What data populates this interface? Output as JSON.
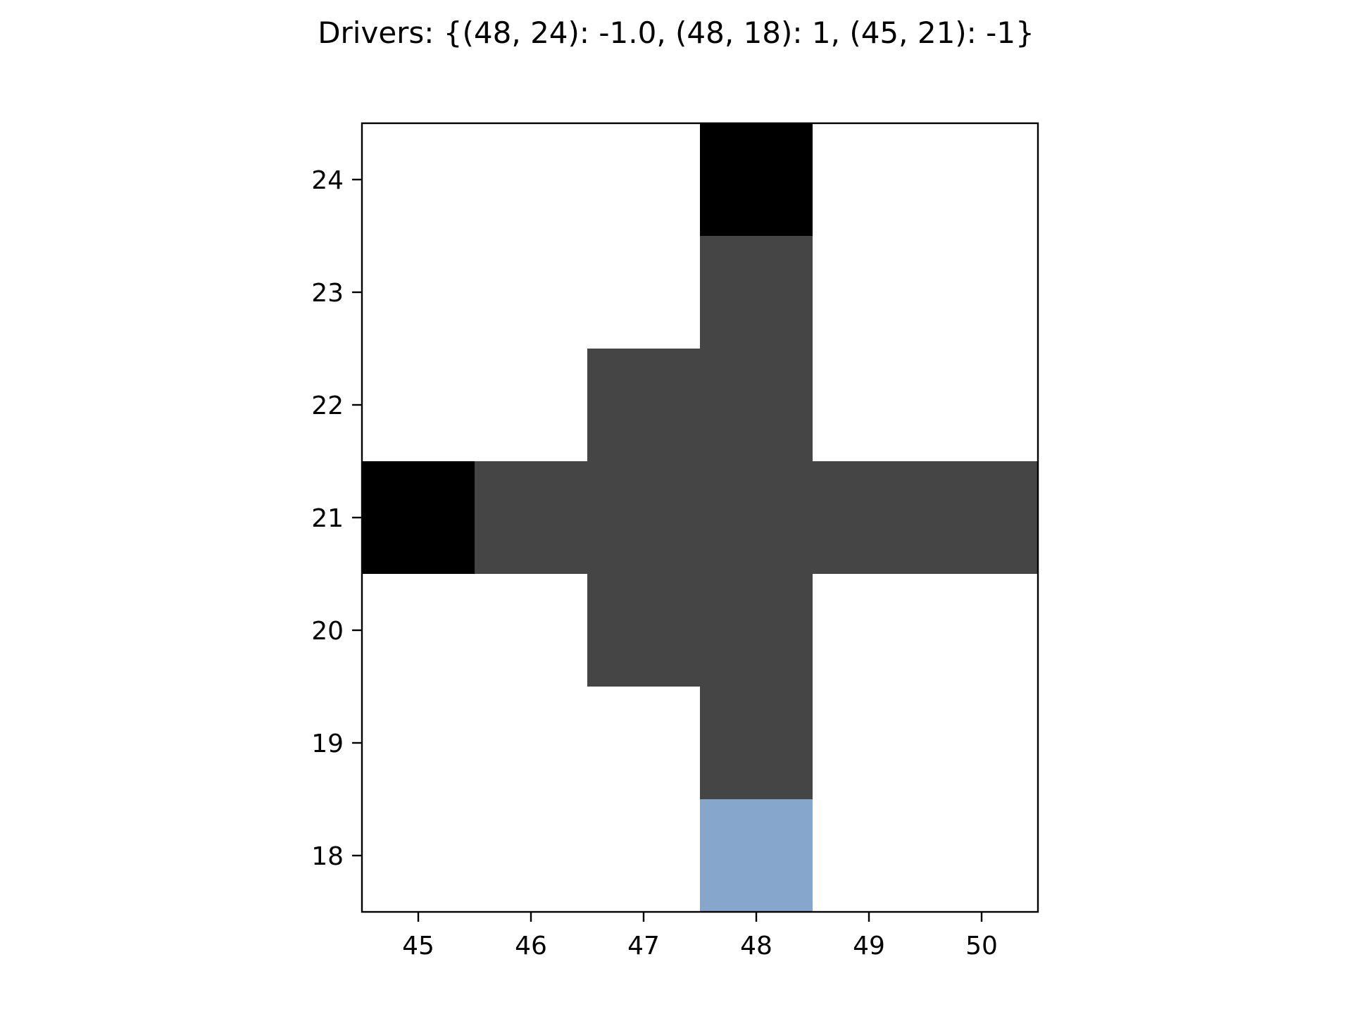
{
  "chart_data": {
    "type": "heatmap",
    "title": "Drivers: {(48, 24): -1.0, (48, 18): 1, (45, 21): -1}",
    "xlabel": "",
    "ylabel": "",
    "xlim": [
      44.5,
      50.5
    ],
    "ylim": [
      17.5,
      24.5
    ],
    "x_ticks": [
      45,
      46,
      47,
      48,
      49,
      50
    ],
    "y_ticks": [
      18,
      19,
      20,
      21,
      22,
      23,
      24
    ],
    "grid": false,
    "background_color": "#ffffff",
    "state_colors": {
      "driver_negative": "#000000",
      "active": "#454545",
      "driver_positive": "#87a6cc"
    },
    "cells": [
      {
        "x": 48,
        "y": 24,
        "state": "driver_negative",
        "value": -1.0
      },
      {
        "x": 48,
        "y": 23,
        "state": "active"
      },
      {
        "x": 47,
        "y": 22,
        "state": "active"
      },
      {
        "x": 48,
        "y": 22,
        "state": "active"
      },
      {
        "x": 45,
        "y": 21,
        "state": "driver_negative",
        "value": -1
      },
      {
        "x": 46,
        "y": 21,
        "state": "active"
      },
      {
        "x": 47,
        "y": 21,
        "state": "active"
      },
      {
        "x": 48,
        "y": 21,
        "state": "active"
      },
      {
        "x": 49,
        "y": 21,
        "state": "active"
      },
      {
        "x": 50,
        "y": 21,
        "state": "active"
      },
      {
        "x": 47,
        "y": 20,
        "state": "active"
      },
      {
        "x": 48,
        "y": 20,
        "state": "active"
      },
      {
        "x": 48,
        "y": 19,
        "state": "active"
      },
      {
        "x": 48,
        "y": 18,
        "state": "driver_positive",
        "value": 1
      }
    ]
  }
}
